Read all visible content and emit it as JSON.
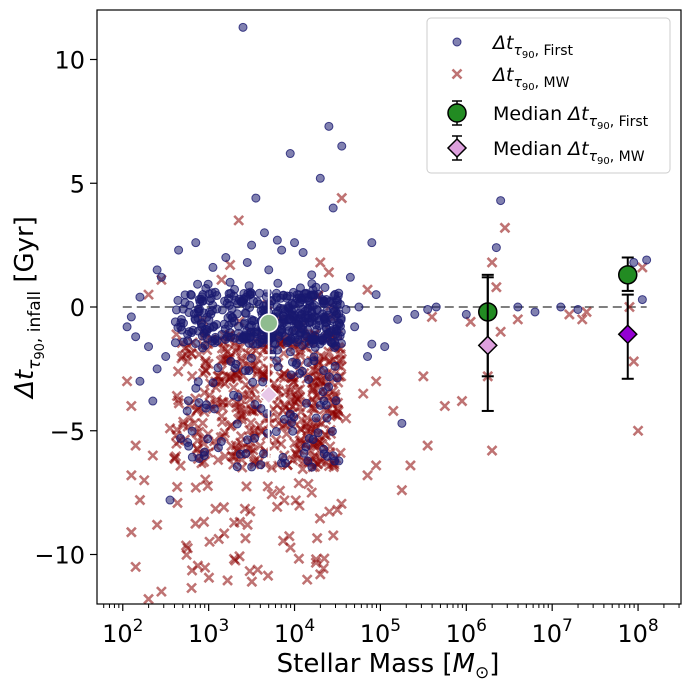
{
  "chart_data": {
    "type": "scatter",
    "xscale": "log",
    "xlim_exponent": [
      1.7,
      8.5
    ],
    "ylim": [
      -12,
      12
    ],
    "grid": false,
    "legend_position": "top-right",
    "xlabel": {
      "text": "Stellar Mass [",
      "sym": "M",
      "sub": "⊙",
      "close": "]"
    },
    "ylabel": {
      "main": "Δt",
      "sub": "τ",
      "subsub": "90",
      "sub2": ", infall",
      "unit": " [Gyr]"
    },
    "x_ticks": [
      {
        "exp": 2,
        "base": "10",
        "pow": "2"
      },
      {
        "exp": 3,
        "base": "10",
        "pow": "3"
      },
      {
        "exp": 4,
        "base": "10",
        "pow": "4"
      },
      {
        "exp": 5,
        "base": "10",
        "pow": "5"
      },
      {
        "exp": 6,
        "base": "10",
        "pow": "6"
      },
      {
        "exp": 7,
        "base": "10",
        "pow": "7"
      },
      {
        "exp": 8,
        "base": "10",
        "pow": "8"
      }
    ],
    "y_ticks": [
      {
        "value": 10,
        "label": "10"
      },
      {
        "value": 5,
        "label": "5"
      },
      {
        "value": 0,
        "label": "0"
      },
      {
        "value": -5,
        "label": "−5"
      },
      {
        "value": -10,
        "label": "−10"
      }
    ],
    "reference_line": {
      "y": 0,
      "x_from_exp": 2,
      "x_to_exp": 8.1,
      "color": "#7f7f7f"
    },
    "legend": [
      {
        "marker": "dot",
        "color": "#191970",
        "main": "Δt",
        "sub": "τ",
        "subsub": "90",
        "sub2": ", First",
        "prefix": ""
      },
      {
        "marker": "x",
        "color": "#8b0000",
        "main": "Δt",
        "sub": "τ",
        "subsub": "90",
        "sub2": ", MW",
        "prefix": ""
      },
      {
        "marker": "circle",
        "color": "#228b22",
        "main": "Δt",
        "sub": "τ",
        "subsub": "90",
        "sub2": ", First",
        "prefix": "Median "
      },
      {
        "marker": "diamond",
        "color": "#dda0dd",
        "main": "Δt",
        "sub": "τ",
        "subsub": "90",
        "sub2": ", MW",
        "prefix": "Median "
      }
    ],
    "series": [
      {
        "name": "Δt τ90, First",
        "marker": "dot",
        "color": "#191970",
        "points": [
          [
            3.4,
            11.3
          ],
          [
            4.4,
            7.3
          ],
          [
            4.55,
            6.5
          ],
          [
            3.95,
            6.2
          ],
          [
            4.3,
            5.2
          ],
          [
            4.45,
            4.0
          ],
          [
            3.55,
            4.4
          ],
          [
            6.4,
            4.3
          ],
          [
            8.1,
            1.9
          ],
          [
            7.95,
            1.8
          ],
          [
            3.65,
            3.0
          ],
          [
            3.5,
            2.5
          ],
          [
            3.8,
            2.7
          ],
          [
            4.0,
            2.6
          ],
          [
            4.9,
            2.6
          ],
          [
            3.85,
            2.3
          ],
          [
            4.1,
            2.2
          ],
          [
            6.35,
            2.4
          ],
          [
            2.85,
            2.6
          ],
          [
            2.65,
            2.3
          ],
          [
            2.4,
            1.5
          ],
          [
            2.45,
            1.2
          ],
          [
            3.2,
            2.0
          ],
          [
            3.05,
            1.6
          ],
          [
            3.45,
            1.8
          ],
          [
            3.7,
            1.5
          ],
          [
            4.2,
            1.3
          ],
          [
            4.65,
            1.2
          ],
          [
            2.2,
            0.4
          ],
          [
            2.1,
            -0.4
          ],
          [
            2.05,
            -0.8
          ],
          [
            2.15,
            -1.2
          ],
          [
            2.3,
            -1.6
          ],
          [
            2.5,
            -2.0
          ],
          [
            2.4,
            -2.5
          ],
          [
            2.2,
            -3.0
          ],
          [
            2.35,
            -3.8
          ],
          [
            2.75,
            -4.2
          ],
          [
            2.95,
            -6.0
          ],
          [
            2.55,
            -7.8
          ],
          [
            4.7,
            -0.8
          ],
          [
            4.9,
            -1.5
          ],
          [
            4.85,
            -2.0
          ],
          [
            5.05,
            -1.6
          ],
          [
            5.2,
            -0.5
          ],
          [
            5.55,
            -0.1
          ],
          [
            5.65,
            0.0
          ],
          [
            5.4,
            -0.3
          ],
          [
            5.25,
            -4.7
          ],
          [
            6.0,
            -0.3
          ],
          [
            6.6,
            0.0
          ],
          [
            6.8,
            -0.2
          ],
          [
            7.1,
            0.0
          ],
          [
            7.3,
            -0.1
          ],
          [
            8.05,
            0.3
          ],
          [
            4.05,
            0.5
          ],
          [
            4.25,
            0.8
          ],
          [
            4.4,
            0.2
          ],
          [
            4.6,
            -0.1
          ],
          [
            4.75,
            0.0
          ],
          [
            4.95,
            0.5
          ]
        ],
        "cloud": {
          "x_range": [
            2.6,
            4.55
          ],
          "y_core": [
            -1.5,
            0.6
          ],
          "y_spread": [
            -6.5,
            1.0
          ],
          "count": 520
        }
      },
      {
        "name": "Δt τ90, MW",
        "marker": "x",
        "color": "#8b0000",
        "points": [
          [
            3.35,
            3.5
          ],
          [
            4.55,
            4.4
          ],
          [
            6.45,
            3.2
          ],
          [
            6.3,
            1.8
          ],
          [
            8.05,
            1.6
          ],
          [
            6.35,
            0.8
          ],
          [
            3.15,
            1.1
          ],
          [
            3.25,
            1.7
          ],
          [
            4.3,
            1.8
          ],
          [
            4.4,
            1.4
          ],
          [
            4.85,
            0.7
          ],
          [
            2.45,
            1.1
          ],
          [
            2.3,
            0.5
          ],
          [
            2.05,
            -3.0
          ],
          [
            2.1,
            -4.0
          ],
          [
            2.15,
            -5.6
          ],
          [
            2.1,
            -6.8
          ],
          [
            2.2,
            -7.8
          ],
          [
            2.1,
            -9.1
          ],
          [
            2.15,
            -10.5
          ],
          [
            2.3,
            -11.8
          ],
          [
            2.45,
            -11.5
          ],
          [
            2.4,
            -8.8
          ],
          [
            2.25,
            -7.0
          ],
          [
            2.35,
            -6.0
          ],
          [
            2.55,
            -4.9
          ],
          [
            2.6,
            -6.1
          ],
          [
            4.3,
            -10.8
          ],
          [
            4.2,
            -7.5
          ],
          [
            4.5,
            -8.2
          ],
          [
            4.85,
            -6.8
          ],
          [
            4.95,
            -6.4
          ],
          [
            5.25,
            -7.4
          ],
          [
            5.35,
            -6.4
          ],
          [
            5.55,
            -5.6
          ],
          [
            5.75,
            -4.0
          ],
          [
            5.95,
            -3.8
          ],
          [
            5.5,
            -2.8
          ],
          [
            5.15,
            -4.2
          ],
          [
            4.6,
            -4.5
          ],
          [
            4.8,
            -3.5
          ],
          [
            4.95,
            -3.0
          ],
          [
            6.3,
            -5.8
          ],
          [
            6.25,
            -2.8
          ],
          [
            6.4,
            -1.0
          ],
          [
            6.6,
            -0.5
          ],
          [
            7.35,
            -0.5
          ],
          [
            7.4,
            -0.2
          ],
          [
            7.2,
            -0.3
          ],
          [
            7.95,
            -2.2
          ],
          [
            8.0,
            -5.0
          ],
          [
            7.9,
            0.0
          ],
          [
            4.05,
            -1.5
          ],
          [
            5.6,
            -0.4
          ],
          [
            6.05,
            -0.6
          ]
        ],
        "cloud": {
          "x_range": [
            2.6,
            4.55
          ],
          "y_core": [
            -6.5,
            -1.0
          ],
          "y_spread": [
            -11.5,
            0.5
          ],
          "count": 520
        }
      }
    ],
    "medians": [
      {
        "name": "Median Δt τ90, First",
        "marker": "circle",
        "points": [
          {
            "x_exp": 3.7,
            "y": -0.65,
            "ylo": -1.95,
            "yhi": 0.75,
            "face": "#8fbc8f",
            "errcolor": "#ffffff"
          },
          {
            "x_exp": 6.25,
            "y": -0.2,
            "ylo": -4.2,
            "yhi": 1.3,
            "face": "#228b22",
            "errcolor": "#000000"
          },
          {
            "x_exp": 7.88,
            "y": 1.3,
            "ylo": 0.65,
            "yhi": 2.0,
            "face": "#228b22",
            "errcolor": "#000000"
          }
        ]
      },
      {
        "name": "Median Δt τ90, MW",
        "marker": "diamond",
        "points": [
          {
            "x_exp": 3.7,
            "y": -3.55,
            "ylo": -6.2,
            "yhi": -1.95,
            "face": "#e8c8e8",
            "errcolor": "#ffffff"
          },
          {
            "x_exp": 6.25,
            "y": -1.55,
            "ylo": -2.8,
            "yhi": 1.2,
            "face": "#dda0dd",
            "errcolor": "#000000"
          },
          {
            "x_exp": 7.88,
            "y": -1.1,
            "ylo": -2.9,
            "yhi": 0.5,
            "face": "#9400d3",
            "errcolor": "#000000"
          }
        ]
      }
    ]
  }
}
